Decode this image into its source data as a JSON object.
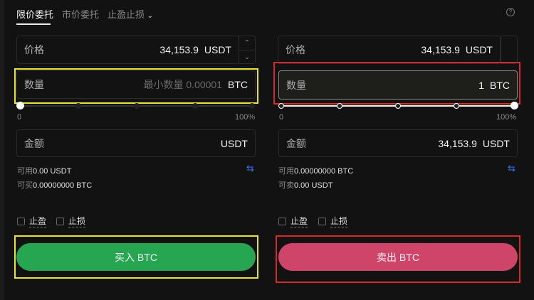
{
  "tabs": [
    {
      "label": "限价委托"
    },
    {
      "label": "市价委托"
    },
    {
      "label": "止盈止损"
    }
  ],
  "buy": {
    "price": {
      "label": "价格",
      "value": "34,153.9",
      "unit": "USDT"
    },
    "quantity": {
      "label": "数量",
      "placeholder": "最小数量 0.00001",
      "unit": "BTC"
    },
    "slider": {
      "min_label": "0",
      "max_label": "100%",
      "value_percent": 0
    },
    "amount": {
      "label": "金额",
      "unit": "USDT"
    },
    "available": {
      "label": "可用",
      "value": "0.00 USDT"
    },
    "can_trade": {
      "label": "可买",
      "value": "0.00000000 BTC"
    },
    "take_profit": "止盈",
    "stop_loss": "止损",
    "button": "买入 BTC"
  },
  "sell": {
    "price": {
      "label": "价格",
      "value": "34,153.9",
      "unit": "USDT"
    },
    "quantity": {
      "label": "数量",
      "value": "1",
      "unit": "BTC"
    },
    "slider": {
      "min_label": "0",
      "max_label": "100%",
      "value_percent": 100
    },
    "amount": {
      "label": "金额",
      "value": "34,153.9",
      "unit": "USDT"
    },
    "available": {
      "label": "可用",
      "value": "0.00000000 BTC"
    },
    "can_trade": {
      "label": "可卖",
      "value": "0.00 USDT"
    },
    "take_profit": "止盈",
    "stop_loss": "止损",
    "button": "卖出 BTC"
  },
  "colors": {
    "buy": "#27a652",
    "sell": "#cf4469",
    "highlight_yellow": "#e8e23a",
    "highlight_red": "#d42a2a",
    "link_blue": "#3a6fe0"
  }
}
